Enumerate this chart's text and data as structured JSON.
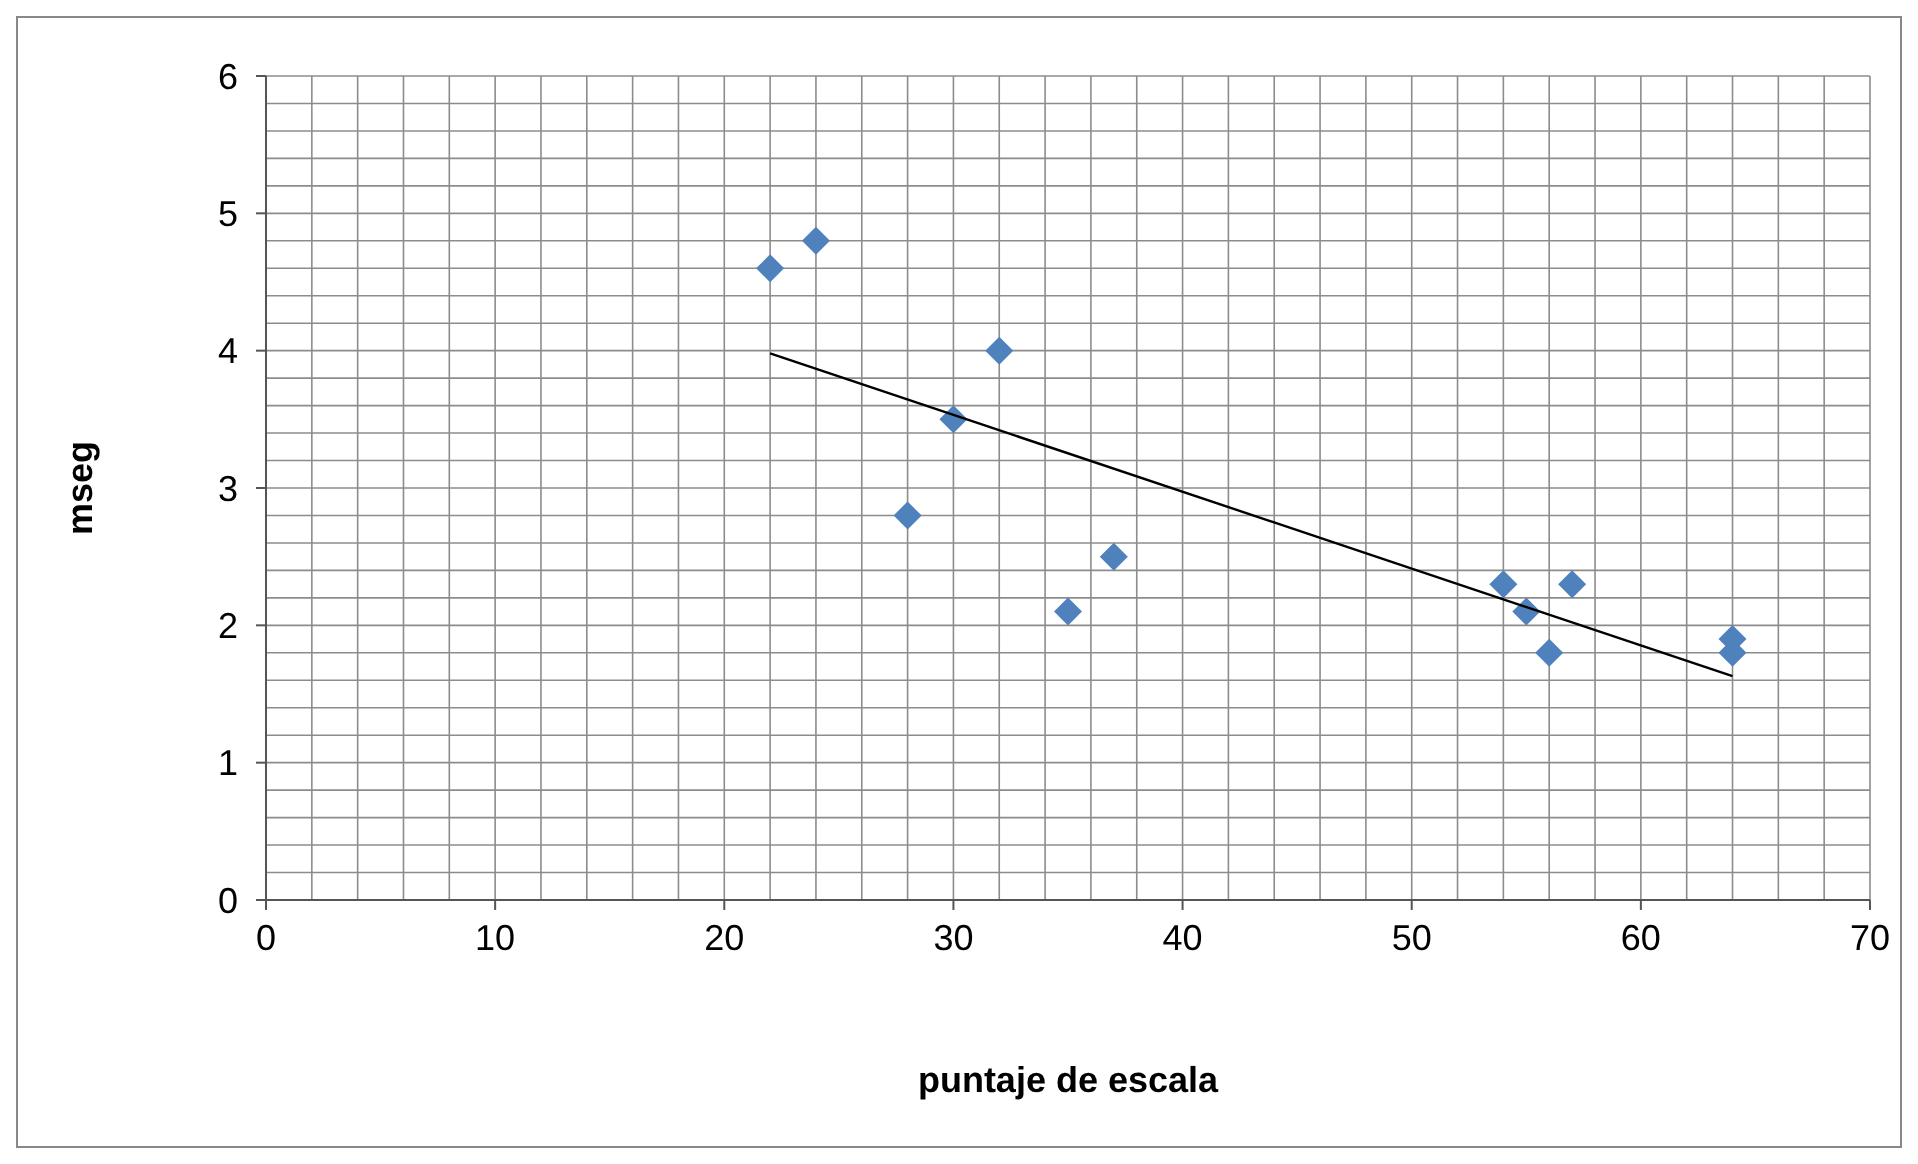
{
  "chart_data": {
    "type": "scatter",
    "xlabel": "puntaje de escala",
    "ylabel": "mseg",
    "xlim": [
      0,
      70
    ],
    "ylim": [
      0,
      6
    ],
    "xticks": [
      0,
      {
        "value": 2,
        "label": null
      },
      {
        "value": 4,
        "label": null
      },
      {
        "value": 6,
        "label": null
      },
      {
        "value": 8,
        "label": null
      },
      10,
      {
        "value": 12,
        "label": null
      },
      {
        "value": 14,
        "label": null
      },
      {
        "value": 16,
        "label": null
      },
      {
        "value": 18,
        "label": null
      },
      20,
      {
        "value": 22,
        "label": null
      },
      {
        "value": 24,
        "label": null
      },
      {
        "value": 26,
        "label": null
      },
      {
        "value": 28,
        "label": null
      },
      30,
      {
        "value": 32,
        "label": null
      },
      {
        "value": 34,
        "label": null
      },
      {
        "value": 36,
        "label": null
      },
      {
        "value": 38,
        "label": null
      },
      40,
      {
        "value": 42,
        "label": null
      },
      {
        "value": 44,
        "label": null
      },
      {
        "value": 46,
        "label": null
      },
      {
        "value": 48,
        "label": null
      },
      50,
      {
        "value": 52,
        "label": null
      },
      {
        "value": 54,
        "label": null
      },
      {
        "value": 56,
        "label": null
      },
      {
        "value": 58,
        "label": null
      },
      60,
      {
        "value": 62,
        "label": null
      },
      {
        "value": 64,
        "label": null
      },
      {
        "value": 66,
        "label": null
      },
      {
        "value": 68,
        "label": null
      },
      70
    ],
    "yticks": [
      0,
      {
        "value": 0.2,
        "label": null
      },
      {
        "value": 0.4,
        "label": null
      },
      {
        "value": 0.6,
        "label": null
      },
      {
        "value": 0.8,
        "label": null
      },
      1,
      {
        "value": 1.2,
        "label": null
      },
      {
        "value": 1.4,
        "label": null
      },
      {
        "value": 1.6,
        "label": null
      },
      {
        "value": 1.8,
        "label": null
      },
      2,
      {
        "value": 2.2,
        "label": null
      },
      {
        "value": 2.4,
        "label": null
      },
      {
        "value": 2.6,
        "label": null
      },
      {
        "value": 2.8,
        "label": null
      },
      3,
      {
        "value": 3.2,
        "label": null
      },
      {
        "value": 3.4,
        "label": null
      },
      {
        "value": 3.6,
        "label": null
      },
      {
        "value": 3.8,
        "label": null
      },
      4,
      {
        "value": 4.2,
        "label": null
      },
      {
        "value": 4.4,
        "label": null
      },
      {
        "value": 4.6,
        "label": null
      },
      {
        "value": 4.8,
        "label": null
      },
      5,
      {
        "value": 5.2,
        "label": null
      },
      {
        "value": 5.4,
        "label": null
      },
      {
        "value": 5.6,
        "label": null
      },
      {
        "value": 5.8,
        "label": null
      },
      6
    ],
    "grid": true,
    "marker": "diamond",
    "series": [
      {
        "color": "#4f81bd",
        "x": [
          22,
          24,
          28,
          30,
          32,
          35,
          37,
          54,
          55,
          56,
          57,
          64,
          64
        ],
        "values": [
          4.6,
          4.8,
          2.8,
          3.5,
          4.0,
          2.1,
          2.5,
          2.3,
          2.1,
          1.8,
          2.3,
          1.9,
          1.8
        ]
      },
      {
        "type": "line",
        "color": "#000000",
        "marker": "none",
        "line_style": "solid",
        "x": [
          22,
          64
        ],
        "values": [
          3.98,
          1.63
        ]
      }
    ]
  }
}
